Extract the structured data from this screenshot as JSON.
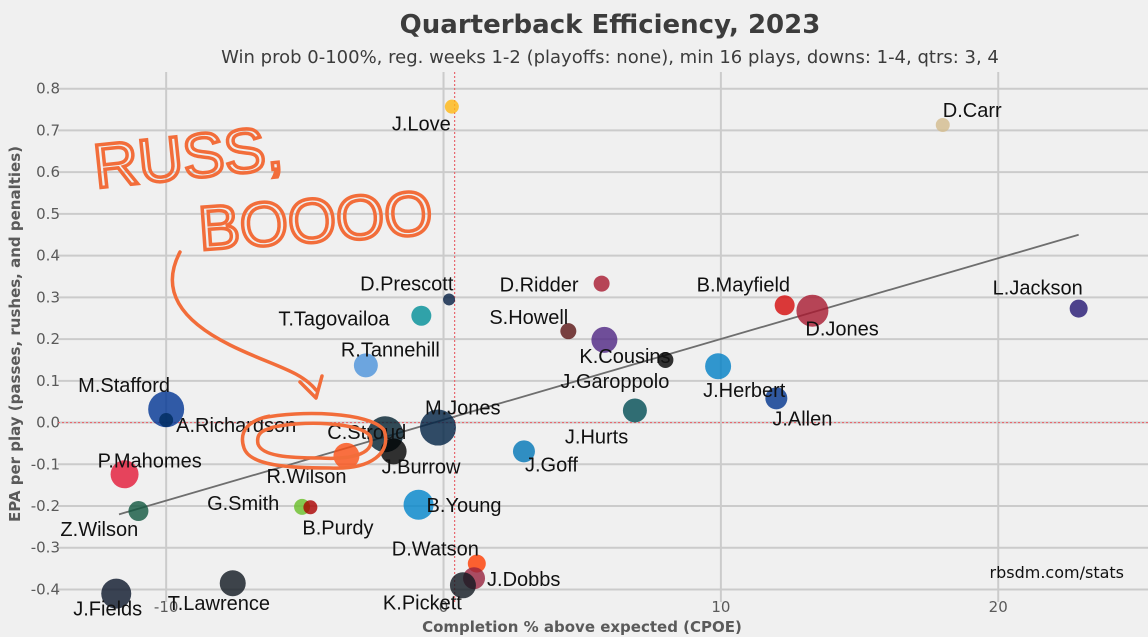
{
  "chart_data": {
    "type": "scatter",
    "title": "Quarterback Efficiency, 2023",
    "subtitle": "Win prob 0-100%, reg. weeks 1-2 (playoffs: none), min 16 plays, downs: 1-4, qtrs: 3, 4",
    "xlabel": "Completion % above expected (CPOE)",
    "ylabel": "EPA per play (passes, rushes, and penalties)",
    "xlim": [
      -13.9,
      25.4
    ],
    "ylim": [
      -0.43,
      0.84
    ],
    "xticks": [
      -10,
      0,
      10,
      20
    ],
    "yticks": [
      -0.4,
      -0.3,
      -0.2,
      -0.1,
      0.0,
      0.1,
      0.2,
      0.3,
      0.4,
      0.5,
      0.6,
      0.7,
      0.8
    ],
    "ytick_labels": [
      "-0.4",
      "-0.3",
      "-0.2",
      "-0.1",
      "0.0",
      "0.1",
      "0.2",
      "0.3",
      "0.4",
      "0.5",
      "0.6",
      "0.7",
      "0.8"
    ],
    "xtick_labels": [
      "-10",
      "0",
      "10",
      "20"
    ],
    "grid": true,
    "reference_lines": {
      "x": 0.4,
      "y": 0.0,
      "color": "#e8686e"
    },
    "trend_line": {
      "x": [
        -11.7,
        22.9
      ],
      "y": [
        -0.22,
        0.45
      ]
    },
    "credit": "rbsdm.com/stats",
    "annotation": {
      "text_line1": "RUSS,",
      "text_line2": "BOOOO",
      "color": "#f26d3a"
    },
    "points": [
      {
        "name": "J.Love",
        "x": 0.3,
        "y": 0.757,
        "size": 7,
        "color": "#ffb612"
      },
      {
        "name": "D.Carr",
        "x": 18.0,
        "y": 0.713,
        "size": 7,
        "color": "#d3bc8d"
      },
      {
        "name": "L.Jackson",
        "x": 22.9,
        "y": 0.273,
        "size": 9,
        "color": "#241773"
      },
      {
        "name": "B.Mayfield",
        "x": 12.3,
        "y": 0.281,
        "size": 10,
        "color": "#d50a0a"
      },
      {
        "name": "D.Jones",
        "x": 13.3,
        "y": 0.268,
        "size": 16,
        "color": "#a71930"
      },
      {
        "name": "D.Ridder",
        "x": 5.7,
        "y": 0.333,
        "size": 8,
        "color": "#a71930"
      },
      {
        "name": "S.Howell",
        "x": 4.5,
        "y": 0.219,
        "size": 8,
        "color": "#5a1414"
      },
      {
        "name": "K.Cousins",
        "x": 5.8,
        "y": 0.198,
        "size": 13,
        "color": "#4f2683"
      },
      {
        "name": "J.Garoppolo",
        "x": 8.0,
        "y": 0.15,
        "size": 8,
        "color": "#000000"
      },
      {
        "name": "J.Herbert",
        "x": 9.9,
        "y": 0.135,
        "size": 13,
        "color": "#0080c6"
      },
      {
        "name": "J.Allen",
        "x": 12.0,
        "y": 0.058,
        "size": 11,
        "color": "#00338d"
      },
      {
        "name": "J.Hurts",
        "x": 6.9,
        "y": 0.029,
        "size": 12,
        "color": "#004c54"
      },
      {
        "name": "D.Prescott",
        "x": 0.2,
        "y": 0.295,
        "size": 6,
        "color": "#041e42"
      },
      {
        "name": "T.Tagovailoa",
        "x": -0.8,
        "y": 0.256,
        "size": 10,
        "color": "#008e97"
      },
      {
        "name": "R.Tannehill",
        "x": -2.8,
        "y": 0.137,
        "size": 12,
        "color": "#4b92db"
      },
      {
        "name": "M.Stafford",
        "x": -10.0,
        "y": 0.032,
        "size": 18,
        "color": "#003594"
      },
      {
        "name": "A.Richardson",
        "x": -10.0,
        "y": 0.006,
        "size": 7,
        "color": "#002c5f"
      },
      {
        "name": "C.Stroud",
        "x": -2.1,
        "y": -0.028,
        "size": 18,
        "color": "#03202f"
      },
      {
        "name": "M.Jones",
        "x": -0.2,
        "y": -0.012,
        "size": 18,
        "color": "#002244"
      },
      {
        "name": "J.Burrow",
        "x": -1.8,
        "y": -0.069,
        "size": 13,
        "color": "#000000"
      },
      {
        "name": "R.Wilson",
        "x": -3.5,
        "y": -0.08,
        "size": 13,
        "color": "#fb4f14"
      },
      {
        "name": "J.Goff",
        "x": 2.9,
        "y": -0.069,
        "size": 11,
        "color": "#0076b6"
      },
      {
        "name": "P.Mahomes",
        "x": -11.5,
        "y": -0.124,
        "size": 14,
        "color": "#e31837"
      },
      {
        "name": "G.Smith",
        "x": -5.1,
        "y": -0.202,
        "size": 8,
        "color": "#69be28"
      },
      {
        "name": "B.Purdy",
        "x": -4.8,
        "y": -0.203,
        "size": 7,
        "color": "#aa0000"
      },
      {
        "name": "B.Young",
        "x": -0.9,
        "y": -0.197,
        "size": 15,
        "color": "#0085ca"
      },
      {
        "name": "Z.Wilson",
        "x": -11.0,
        "y": -0.212,
        "size": 10,
        "color": "#125740"
      },
      {
        "name": "D.Watson",
        "x": 1.2,
        "y": -0.338,
        "size": 9,
        "color": "#ff3c00"
      },
      {
        "name": "J.Dobbs",
        "x": 1.1,
        "y": -0.373,
        "size": 11,
        "color": "#97233f"
      },
      {
        "name": "K.Pickett",
        "x": 0.7,
        "y": -0.39,
        "size": 13,
        "color": "#101820"
      },
      {
        "name": "J.Fields",
        "x": -11.8,
        "y": -0.41,
        "size": 15,
        "color": "#0b162a"
      },
      {
        "name": "T.Lawrence",
        "x": -7.6,
        "y": -0.385,
        "size": 13,
        "color": "#101820"
      }
    ]
  }
}
